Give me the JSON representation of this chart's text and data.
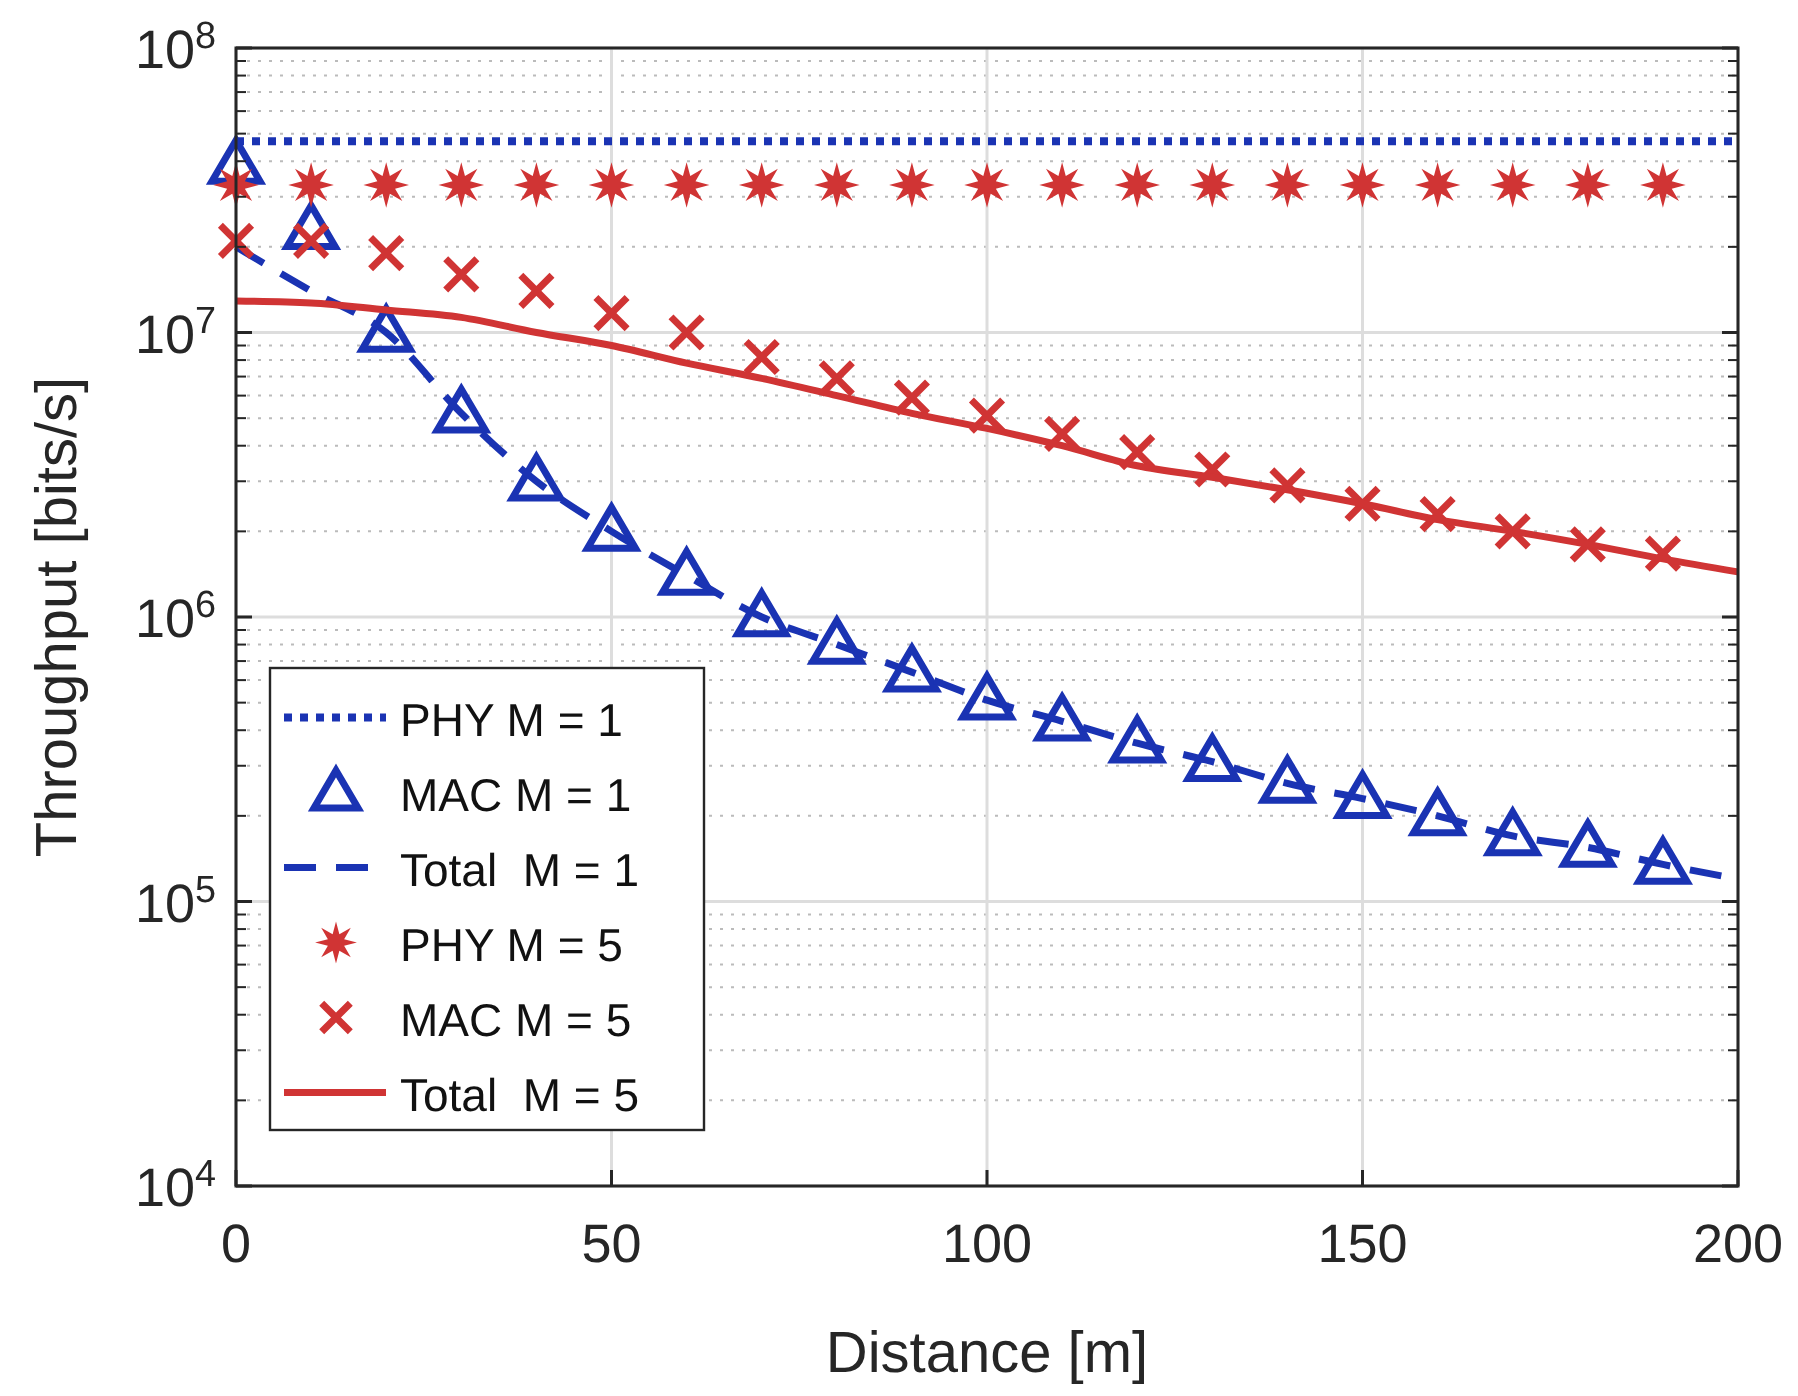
{
  "chart_data": {
    "type": "line",
    "xlabel": "Distance [m]",
    "ylabel": "Throughput [bits/s]",
    "log": "y",
    "grid": true,
    "legend": "bottom left",
    "xlim": [
      0,
      200
    ],
    "xticks": [
      0,
      50,
      100,
      150,
      200
    ],
    "ylim": [
      10000,
      100000000
    ],
    "yticks": [
      {
        "value": 10000,
        "label": "10$^{4}$"
      },
      {
        "value": 100000,
        "label": "10$^{5}$"
      },
      {
        "value": 1000000,
        "label": "10$^{6}$"
      },
      {
        "value": 10000000,
        "label": "10$^{7}$"
      },
      {
        "value": 100000000,
        "label": "10$^{8}$"
      }
    ],
    "series": [
      {
        "name": "PHY M = 1",
        "color": "#1a33b3",
        "line_style": "dotted",
        "marker": "none",
        "x": [
          0,
          200
        ],
        "values": [
          47000000,
          47000000
        ]
      },
      {
        "name": "MAC M = 1",
        "type": "scatter",
        "color": "#1a33b3",
        "marker": "triangle",
        "x": [
          0,
          10,
          20,
          30,
          40,
          50,
          60,
          70,
          80,
          90,
          100,
          110,
          120,
          130,
          140,
          150,
          160,
          170,
          180,
          190
        ],
        "values": [
          39000000,
          23000000,
          10000000,
          5200000,
          3000000,
          2000000,
          1400000,
          1000000,
          800000,
          640000,
          510000,
          430000,
          360000,
          310000,
          260000,
          230000,
          200000,
          170000,
          155000,
          135000
        ]
      },
      {
        "name": "Total  M = 1",
        "color": "#1a33b3",
        "line_style": "dashed",
        "marker": "none",
        "x": [
          0,
          10,
          20,
          30,
          40,
          50,
          60,
          70,
          80,
          90,
          100,
          110,
          120,
          130,
          140,
          150,
          160,
          170,
          180,
          190,
          200
        ],
        "values": [
          20000000,
          14000000,
          10000000,
          5200000,
          3000000,
          2000000,
          1400000,
          1000000,
          800000,
          640000,
          510000,
          430000,
          360000,
          310000,
          260000,
          230000,
          200000,
          170000,
          155000,
          135000,
          120000
        ]
      },
      {
        "name": "PHY M = 5",
        "type": "scatter",
        "color": "#d03434",
        "marker": "star",
        "x": [
          0,
          10,
          20,
          30,
          40,
          50,
          60,
          70,
          80,
          90,
          100,
          110,
          120,
          130,
          140,
          150,
          160,
          170,
          180,
          190
        ],
        "values": [
          33000000,
          33000000,
          33000000,
          33000000,
          33000000,
          33000000,
          33000000,
          33000000,
          33000000,
          33000000,
          33000000,
          33000000,
          33000000,
          33000000,
          33000000,
          33000000,
          33000000,
          33000000,
          33000000,
          33000000
        ]
      },
      {
        "name": "MAC M = 5",
        "type": "scatter",
        "color": "#d03434",
        "marker": "cross",
        "x": [
          0,
          10,
          20,
          30,
          40,
          50,
          60,
          70,
          80,
          90,
          100,
          110,
          120,
          130,
          140,
          150,
          160,
          170,
          180,
          190
        ],
        "values": [
          21000000,
          21000000,
          19000000,
          16000000,
          14000000,
          11700000,
          10000000,
          8200000,
          6900000,
          5900000,
          5100000,
          4400000,
          3800000,
          3300000,
          2900000,
          2500000,
          2300000,
          2000000,
          1800000,
          1670000
        ]
      },
      {
        "name": "Total  M = 5",
        "color": "#d03434",
        "line_style": "solid",
        "marker": "none",
        "x": [
          0,
          10,
          20,
          30,
          40,
          50,
          60,
          70,
          80,
          90,
          100,
          110,
          120,
          130,
          140,
          150,
          160,
          170,
          180,
          190,
          200
        ],
        "values": [
          12900000,
          12700000,
          12000000,
          11300000,
          10000000,
          9000000,
          7800000,
          6900000,
          6000000,
          5200000,
          4600000,
          4000000,
          3400000,
          3100000,
          2800000,
          2500000,
          2200000,
          2000000,
          1800000,
          1600000,
          1440000
        ]
      }
    ]
  }
}
